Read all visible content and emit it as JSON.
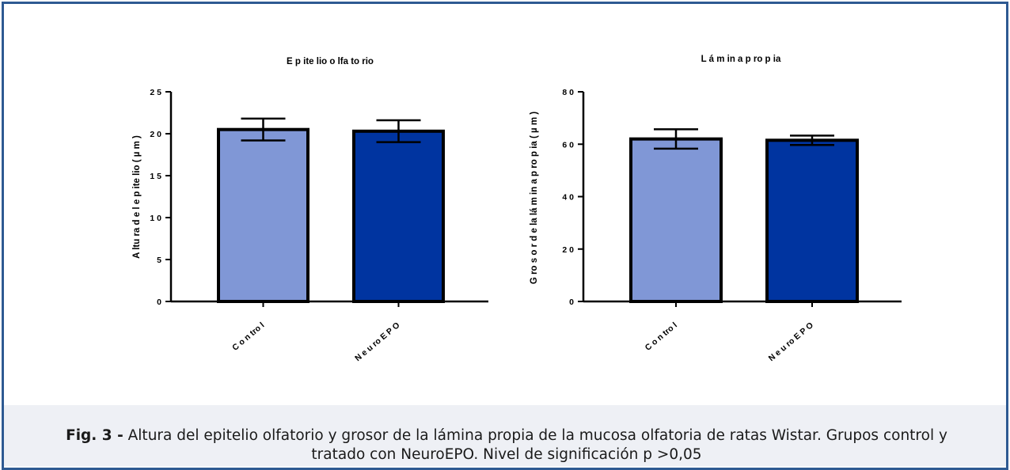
{
  "colors": {
    "frame_border": "#2e5a92",
    "caption_background": "#eef0f5",
    "control_bar": "#8097d6",
    "neuroepo_bar": "#0034a0"
  },
  "caption": {
    "label": "Fig. 3 -",
    "text": "Altura del epitelio olfatorio y grosor de la lámina propia de la mucosa olfatoria de ratas Wistar. Grupos control y tratado con NeuroEPO. Nivel de significación p >0,05"
  },
  "chart_data": [
    {
      "type": "bar",
      "title": "E p ite lio  o lfa to rio",
      "ylabel": "A ltu ra  d e l e p ite lio  ( µ m )",
      "xlabel": "",
      "categories": [
        "C o n tro l",
        "N e u ro E P O"
      ],
      "values": [
        20.5,
        20.3
      ],
      "errors": [
        1.3,
        1.3
      ],
      "bar_colors": [
        "#8097d6",
        "#0034a0"
      ],
      "ylim": [
        0,
        25
      ],
      "yticks": [
        "0",
        "5",
        "1 0",
        "1 5",
        "2 0",
        "2 5"
      ],
      "grid": false
    },
    {
      "type": "bar",
      "title": "L á m in a  p ro p ia",
      "ylabel": "G ro s o r d e  la  lá m in a  p ro p ia  ( µ m )",
      "xlabel": "",
      "categories": [
        "C o n tro l",
        "N e u ro E P O"
      ],
      "values": [
        62,
        61.5
      ],
      "errors": [
        3.7,
        1.8
      ],
      "bar_colors": [
        "#8097d6",
        "#0034a0"
      ],
      "ylim": [
        0,
        80
      ],
      "yticks": [
        "0",
        "2 0",
        "4 0",
        "6 0",
        "8 0"
      ],
      "grid": false
    }
  ]
}
